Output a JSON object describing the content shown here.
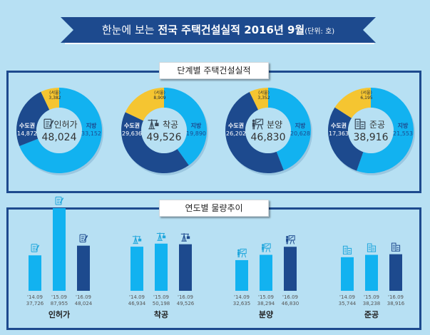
{
  "header": {
    "title_prefix": "한눈에 보는 ",
    "title_bold": "전국 주택건설실적 2016년 9월",
    "unit": "(단위: 호)"
  },
  "sections": {
    "stage": "단계별 주택건설실적",
    "trend": "연도별 물량추이"
  },
  "colors": {
    "background": "#b7e0f3",
    "navy": "#1d4a8e",
    "light_blue": "#12b2f0",
    "yellow": "#f5c531"
  },
  "chart_data": [
    {
      "type": "pie",
      "title": "단계별 주택건설실적",
      "donuts": [
        {
          "name": "인허가",
          "icon": "document-pen-icon",
          "total": "48,024",
          "slices": [
            {
              "label": "지방",
              "value": 33152,
              "text": "33,152"
            },
            {
              "label": "수도권",
              "value": 14872,
              "text": "14,872"
            },
            {
              "label": "(서울)",
              "value": 3382,
              "text": "3,382",
              "part_of": "수도권"
            }
          ]
        },
        {
          "name": "착공",
          "icon": "crane-icon",
          "total": "49,526",
          "slices": [
            {
              "label": "지방",
              "value": 19890,
              "text": "19,890"
            },
            {
              "label": "수도권",
              "value": 29636,
              "text": "29,636"
            },
            {
              "label": "(서울)",
              "value": 8909,
              "text": "8,909",
              "part_of": "수도권"
            }
          ]
        },
        {
          "name": "분양",
          "icon": "presentation-icon",
          "total": "46,830",
          "slices": [
            {
              "label": "지방",
              "value": 20628,
              "text": "20,628"
            },
            {
              "label": "수도권",
              "value": 26202,
              "text": "26,202"
            },
            {
              "label": "(서울)",
              "value": 3352,
              "text": "3,352",
              "part_of": "수도권"
            }
          ]
        },
        {
          "name": "준공",
          "icon": "building-icon",
          "total": "38,916",
          "slices": [
            {
              "label": "지방",
              "value": 21553,
              "text": "21,553"
            },
            {
              "label": "수도권",
              "value": 17363,
              "text": "17,363"
            },
            {
              "label": "(서울)",
              "value": 6195,
              "text": "6,195",
              "part_of": "수도권"
            }
          ]
        }
      ]
    },
    {
      "type": "bar",
      "title": "연도별 물량추이",
      "groups": [
        {
          "name": "인허가",
          "icon": "document-pen-icon",
          "categories": [
            "'14.09",
            "'15.09",
            "'16.09"
          ],
          "values": [
            37726,
            87955,
            48024
          ],
          "labels": [
            "37,726",
            "87,955",
            "48,024"
          ]
        },
        {
          "name": "착공",
          "icon": "crane-icon",
          "categories": [
            "'14.09",
            "'15.09",
            "'16.09"
          ],
          "values": [
            46934,
            50198,
            49526
          ],
          "labels": [
            "46,934",
            "50,198",
            "49,526"
          ]
        },
        {
          "name": "분양",
          "icon": "presentation-icon",
          "categories": [
            "'14.09",
            "'15.09",
            "'16.09"
          ],
          "values": [
            32635,
            38294,
            46830
          ],
          "labels": [
            "32,635",
            "38,294",
            "46,830"
          ]
        },
        {
          "name": "준공",
          "icon": "building-icon",
          "categories": [
            "'14.09",
            "'15.09",
            "'16.09"
          ],
          "values": [
            35744,
            38238,
            38916
          ],
          "labels": [
            "35,744",
            "38,238",
            "38,916"
          ]
        }
      ]
    }
  ]
}
